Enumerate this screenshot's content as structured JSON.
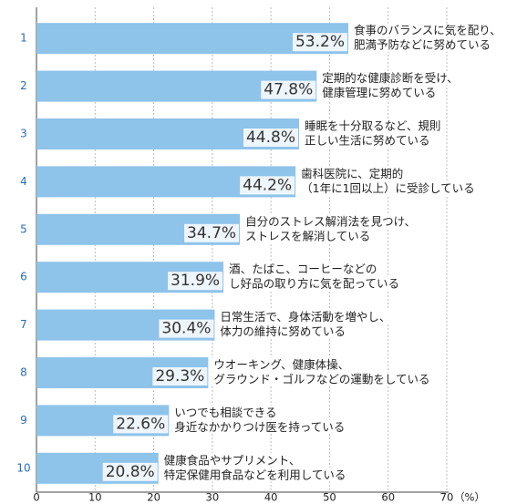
{
  "chart_data": {
    "type": "bar",
    "orientation": "horizontal",
    "categories": [
      "1",
      "2",
      "3",
      "4",
      "5",
      "6",
      "7",
      "8",
      "9",
      "10"
    ],
    "values": [
      53.2,
      47.8,
      44.8,
      44.2,
      34.7,
      31.9,
      30.4,
      29.3,
      22.6,
      20.8
    ],
    "value_labels": [
      "53.2%",
      "47.8%",
      "44.8%",
      "44.2%",
      "34.7%",
      "31.9%",
      "30.4%",
      "29.3%",
      "22.6%",
      "20.8%"
    ],
    "descriptions": [
      [
        "食事のバランスに気を配り、",
        "肥満予防などに努めている"
      ],
      [
        "定期的な健康診断を受け、",
        "健康管理に努めている"
      ],
      [
        "睡眠を十分取るなど、規則",
        "正しい生活に努めている"
      ],
      [
        "歯科医院に、定期的",
        "（1年に1回以上）に受診している"
      ],
      [
        "自分のストレス解消法を見つけ、",
        "ストレスを解消している"
      ],
      [
        "酒、たばこ、コーヒーなどの",
        "し好品の取り方に気を配っている"
      ],
      [
        "日常生活で、身体活動を増やし、",
        "体力の維持に努めている"
      ],
      [
        "ウオーキング、健康体操、",
        "グラウンド・ゴルフなどの運動をしている"
      ],
      [
        "いつでも相談できる",
        "身近なかかりつけ医を持っている"
      ],
      [
        "健康食品やサプリメント、",
        "特定保健用食品などを利用している"
      ]
    ],
    "color": "#8ec3ea",
    "xlim": [
      0,
      70
    ],
    "xticks": [
      0,
      10,
      20,
      30,
      40,
      50,
      60,
      70
    ],
    "x_unit": "（%）",
    "grid": true
  }
}
